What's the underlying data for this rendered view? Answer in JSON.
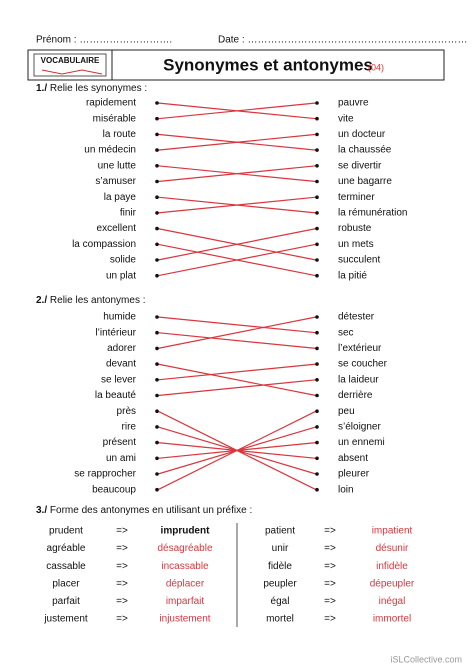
{
  "header": {
    "first_name": "Prénom : ……………………….",
    "date": "Date : …………………………………………………………",
    "logo": "VOCABULAIRE",
    "title": "Synonymes et antonymes",
    "code": "(04)"
  },
  "sections": [
    {
      "number": "1./",
      "instruction": "Relie les synonymes :",
      "left": [
        "rapidement",
        "misérable",
        "la route",
        "un médecin",
        "une lutte",
        "s’amuser",
        "la paye",
        "finir",
        "excellent",
        "la compassion",
        "solide",
        "un plat"
      ],
      "right": [
        "pauvre",
        "vite",
        "un docteur",
        "la chaussée",
        "se divertir",
        "une bagarre",
        "terminer",
        "la rémunération",
        "robuste",
        "un mets",
        "succulent",
        "la pitié"
      ]
    },
    {
      "number": "2./",
      "instruction": "Relie les antonymes :",
      "left": [
        "humide",
        "l’intérieur",
        "adorer",
        "devant",
        "se lever",
        "la beauté",
        "près",
        "rire",
        "présent",
        "un ami",
        "se rapprocher",
        "beaucoup"
      ],
      "right": [
        "détester",
        "sec",
        "l’extérieur",
        "se coucher",
        "la laideur",
        "derrière",
        "peu",
        "s’éloigner",
        "un ennemi",
        "absent",
        "pleurer",
        "loin"
      ]
    },
    {
      "number": "3./",
      "instruction": "Forme des antonymes en utilisant un préfixe :",
      "rows": [
        [
          "prudent",
          "=>",
          "imprudent",
          "patient",
          "=>",
          "impatient"
        ],
        [
          "agréable",
          "=>",
          "désagréable",
          "unir",
          "=>",
          "désunir"
        ],
        [
          "cassable",
          "=>",
          "incassable",
          "fidèle",
          "=>",
          "infidèle"
        ],
        [
          "placer",
          "=>",
          "déplacer",
          "peupler",
          "=>",
          "dépeupler"
        ],
        [
          "parfait",
          "=>",
          "imparfait",
          "égal",
          "=>",
          "inégal"
        ],
        [
          "justement",
          "=>",
          "injustement",
          "mortel",
          "=>",
          "immortel"
        ]
      ]
    }
  ],
  "footer": "iSLCollective.com"
}
